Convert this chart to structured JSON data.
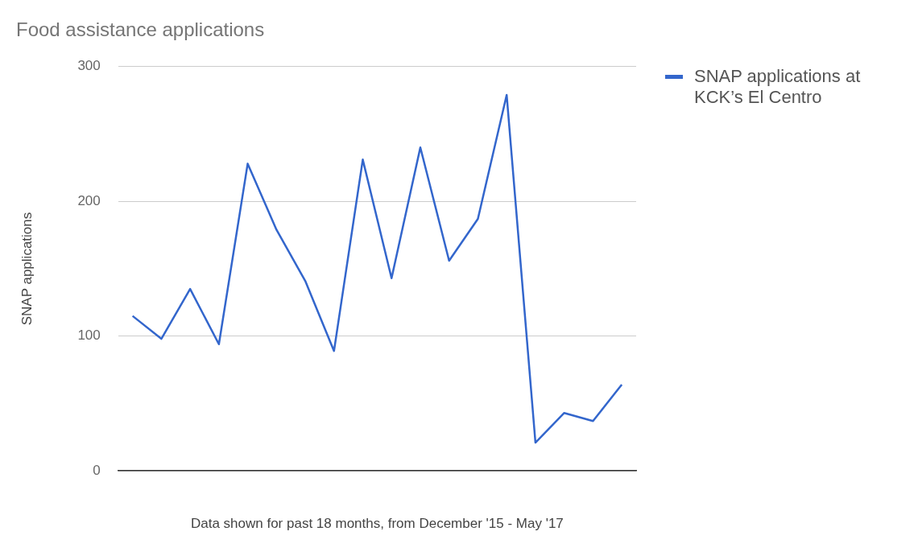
{
  "chart_data": {
    "type": "line",
    "title": "Food assistance applications",
    "xlabel": "Data shown for past 18 months, from December '15 - May '17",
    "ylabel": "SNAP applications",
    "categories": [
      null,
      null,
      null,
      null,
      null,
      null,
      null,
      null,
      null,
      null,
      null,
      null,
      null,
      null,
      null,
      null,
      null,
      null
    ],
    "series": [
      {
        "name": "SNAP applications at KCK’s El Centro",
        "color": "#3366cc",
        "values": [
          115,
          98,
          135,
          94,
          228,
          179,
          141,
          89,
          231,
          143,
          240,
          156,
          187,
          279,
          21,
          43,
          37,
          64
        ]
      }
    ],
    "ylim": [
      0,
      300
    ],
    "yticks": [
      0,
      100,
      200,
      300
    ],
    "grid": "y",
    "legend": "top right",
    "marker": "none",
    "line_style": "solid"
  }
}
